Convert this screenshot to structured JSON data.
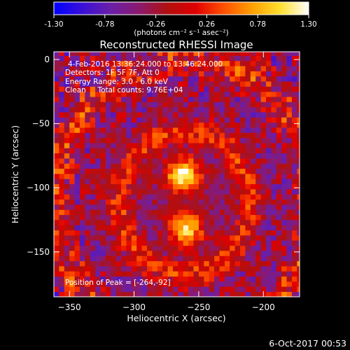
{
  "colorbar": {
    "ticks": [
      "-1.30",
      "-0.78",
      "-0.26",
      "0.26",
      "0.78",
      "1.30"
    ],
    "tick_values": [
      -1.3,
      -0.78,
      -0.26,
      0.26,
      0.78,
      1.3
    ],
    "range": [
      -1.3,
      1.3
    ],
    "units_label": "(photons cm⁻² s⁻¹ asec⁻²)",
    "colormap": [
      "#0000ff",
      "#3a10d8",
      "#6a1fa8",
      "#8a1a70",
      "#b01010",
      "#e00000",
      "#ff5000",
      "#ffa000",
      "#ffe030",
      "#ffffff"
    ]
  },
  "chart_data": {
    "type": "heatmap",
    "title": "Reconstructed RHESSI Image",
    "xlabel": "Heliocentric X (arcsec)",
    "ylabel": "Heliocentric Y (arcsec)",
    "xlim": [
      -362,
      -172
    ],
    "ylim": [
      -185,
      6
    ],
    "xticks": [
      -350,
      -300,
      -250,
      -200
    ],
    "yticks": [
      0,
      -50,
      -100,
      -150
    ],
    "annotations": [
      "4-Feb-2016 13:36:24.000 to 13:46:24.000",
      "Detectors: 1F 5F 7F, Att 0",
      "Energy Range: 3.0 - 6.0 keV",
      "Clean     Total counts: 9.76E+04",
      "Position of Peak = [-264,-92]"
    ],
    "peak": [
      -264,
      -92
    ],
    "sources": [
      {
        "x": -264,
        "y": -92,
        "peak": 1.3
      },
      {
        "x": -262,
        "y": -134,
        "peak": 1.05
      }
    ],
    "background_level": -0.35,
    "footer": "6-Oct-2017 00:53"
  }
}
